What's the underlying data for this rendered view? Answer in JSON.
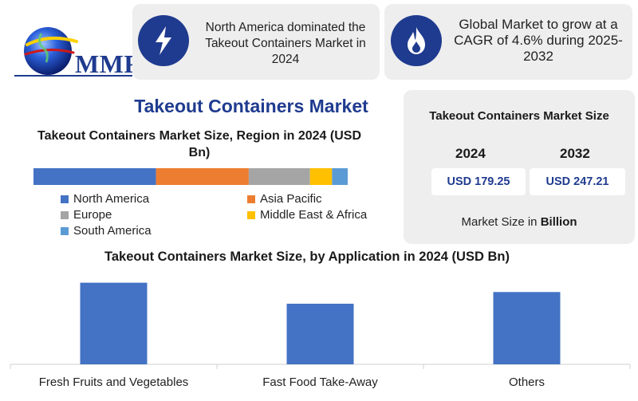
{
  "logo": {
    "text": "MMR"
  },
  "cards": {
    "north_america": {
      "icon": "lightning-icon",
      "text": "North America dominated the Takeout Containers Market in 2024"
    },
    "cagr": {
      "icon": "flame-icon",
      "text": "Global Market to grow at a CAGR of 4.6% during 2025-2032"
    }
  },
  "main_title": "Takeout Containers Market",
  "market_size": {
    "title": "Takeout Containers Market Size",
    "year_a": "2024",
    "year_b": "2032",
    "value_a": "USD 179.25",
    "value_b": "USD 247.21",
    "note_prefix": "Market Size in ",
    "note_bold": "Billion"
  },
  "colors": {
    "brand": "#1f3b8f",
    "north_america": "#4472c4",
    "asia_pacific": "#ed7d31",
    "europe": "#a5a5a5",
    "middle_east_africa": "#ffc000",
    "south_america": "#5b9bd5",
    "app_bar": "#4472c4"
  },
  "chart_data": [
    {
      "type": "bar",
      "orientation": "horizontal-stacked",
      "title": "Takeout Containers Market Size, Region in 2024 (USD Bn)",
      "series": [
        {
          "name": "North America",
          "values": [
            0.39
          ]
        },
        {
          "name": "Asia Pacific",
          "values": [
            0.295
          ]
        },
        {
          "name": "Europe",
          "values": [
            0.195
          ]
        },
        {
          "name": "Middle East & Africa",
          "values": [
            0.07
          ]
        },
        {
          "name": "South America",
          "values": [
            0.05
          ]
        }
      ],
      "legend": "bottom",
      "grid": false
    },
    {
      "type": "bar",
      "title": "Takeout Containers Market Size, by Application in 2024 (USD Bn)",
      "categories": [
        "Fresh Fruits and Vegetables",
        "Fast Food Take-Away",
        "Others"
      ],
      "values": [
        70,
        52,
        62
      ],
      "ylim": [
        0,
        80
      ],
      "grid": false
    }
  ]
}
